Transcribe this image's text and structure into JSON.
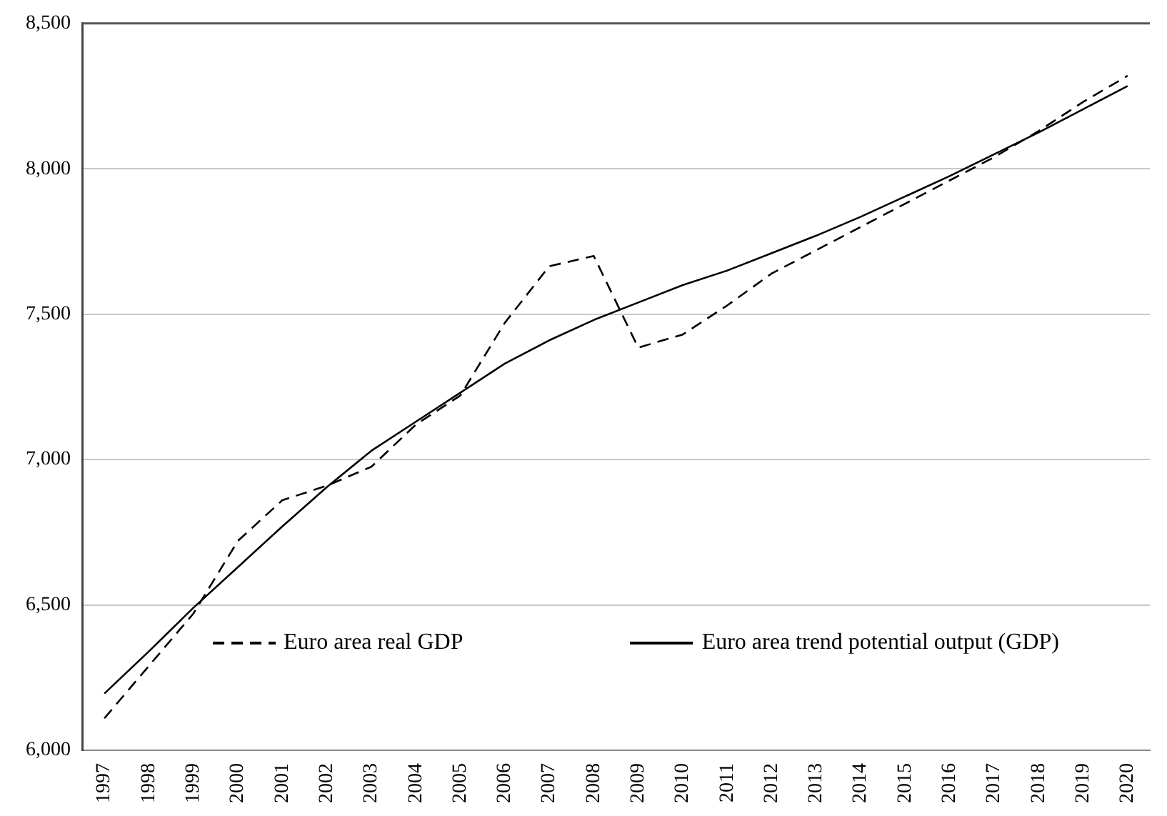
{
  "chart_data": {
    "type": "line",
    "categories": [
      "1997",
      "1998",
      "1999",
      "2000",
      "2001",
      "2002",
      "2003",
      "2004",
      "2005",
      "2006",
      "2007",
      "2008",
      "2009",
      "2010",
      "2011",
      "2012",
      "2013",
      "2014",
      "2015",
      "2016",
      "2017",
      "2018",
      "2019",
      "2020"
    ],
    "series": [
      {
        "name": "Euro area real GDP",
        "color": "#000000",
        "line_style": "dashed",
        "values": [
          6110,
          6290,
          6470,
          6720,
          6860,
          6910,
          6975,
          7120,
          7220,
          7470,
          7665,
          7700,
          7385,
          7430,
          7530,
          7640,
          7720,
          7800,
          7880,
          7960,
          8040,
          8130,
          8230,
          8320
        ]
      },
      {
        "name": "Euro area trend potential output (GDP)",
        "color": "#000000",
        "line_style": "solid",
        "values": [
          6195,
          6340,
          6490,
          6630,
          6770,
          6905,
          7030,
          7130,
          7230,
          7330,
          7410,
          7480,
          7540,
          7600,
          7650,
          7710,
          7770,
          7835,
          7905,
          7975,
          8050,
          8125,
          8205,
          8285
        ]
      }
    ],
    "ylim": [
      6000,
      8500
    ],
    "yticks": [
      {
        "value": 6000,
        "label": "6,000"
      },
      {
        "value": 6500,
        "label": "6,500"
      },
      {
        "value": 7000,
        "label": "7,000"
      },
      {
        "value": 7500,
        "label": "7,500"
      },
      {
        "value": 8000,
        "label": "8,000"
      },
      {
        "value": 8500,
        "label": "8,500"
      }
    ],
    "grid": "y",
    "legend": "bottom",
    "marker": "none"
  }
}
